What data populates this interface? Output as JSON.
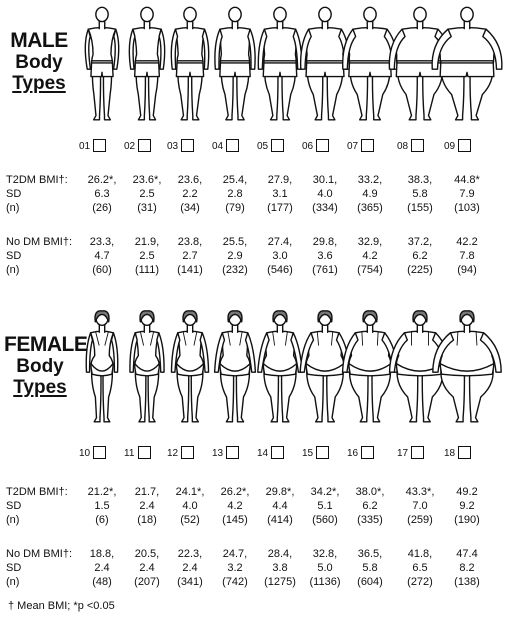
{
  "male": {
    "title": [
      "MALE",
      "Body",
      "Types"
    ],
    "checkboxes": [
      "01",
      "02",
      "03",
      "04",
      "05",
      "06",
      "07",
      "08",
      "09"
    ],
    "t2dm": {
      "labels": [
        "T2DM BMI†:",
        "SD",
        "(n)"
      ],
      "bmi": [
        "26.2*,",
        "23.6*,",
        "23.6,",
        "25.4,",
        "27.9,",
        "30.1,",
        "33.2,",
        "38.3,",
        "44.8*"
      ],
      "sd": [
        "6.3",
        "2.5",
        "2.2",
        "2.8",
        "3.1",
        "4.0",
        "4.9",
        "5.8",
        "7.9"
      ],
      "n": [
        "(26)",
        "(31)",
        "(34)",
        "(79)",
        "(177)",
        "(334)",
        "(365)",
        "(155)",
        "(103)"
      ]
    },
    "nodm": {
      "labels": [
        "No DM BMI†:",
        "SD",
        "(n)"
      ],
      "bmi": [
        "23.3,",
        "21.9,",
        "23.8,",
        "25.5,",
        "27.4,",
        "29.8,",
        "32.9,",
        "37.2,",
        "42.2"
      ],
      "sd": [
        "4.7",
        "2.5",
        "2.7",
        "2.9",
        "3.0",
        "3.6",
        "4.2",
        "6.2",
        "7.8"
      ],
      "n": [
        "(60)",
        "(111)",
        "(141)",
        "(232)",
        "(546)",
        "(761)",
        "(754)",
        "(225)",
        "(94)"
      ]
    }
  },
  "female": {
    "title": [
      "FEMALE",
      "Body",
      "Types"
    ],
    "checkboxes": [
      "10",
      "11",
      "12",
      "13",
      "14",
      "15",
      "16",
      "17",
      "18"
    ],
    "t2dm": {
      "labels": [
        "T2DM BMI†:",
        "SD",
        "(n)"
      ],
      "bmi": [
        "21.2*,",
        "21.7,",
        "24.1*,",
        "26.2*,",
        "29.8*,",
        "34.2*,",
        "38.0*,",
        "43.3*,",
        "49.2"
      ],
      "sd": [
        "1.5",
        "2.4",
        "4.0",
        "4.2",
        "4.4",
        "5.1",
        "6.2",
        "7.0",
        "9.2"
      ],
      "n": [
        "(6)",
        "(18)",
        "(52)",
        "(145)",
        "(414)",
        "(560)",
        "(335)",
        "(259)",
        "(190)"
      ]
    },
    "nodm": {
      "labels": [
        "No DM BMI†:",
        "SD",
        "(n)"
      ],
      "bmi": [
        "18.8,",
        "20.5,",
        "22.3,",
        "24.7,",
        "28.4,",
        "32.8,",
        "36.5,",
        "41.8,",
        "47.4"
      ],
      "sd": [
        "2.4",
        "2.4",
        "2.4",
        "3.2",
        "3.8",
        "5.0",
        "5.8",
        "6.5",
        "8.2"
      ],
      "n": [
        "(48)",
        "(207)",
        "(341)",
        "(742)",
        "(1275)",
        "(1136)",
        "(604)",
        "(272)",
        "(138)"
      ]
    }
  },
  "footnote": "† Mean BMI; *p <0.05",
  "figure_widths": {
    "male": [
      0.0,
      0.08,
      0.16,
      0.26,
      0.36,
      0.5,
      0.64,
      0.8,
      1.0
    ],
    "female": [
      0.0,
      0.08,
      0.16,
      0.26,
      0.36,
      0.5,
      0.64,
      0.8,
      1.0
    ]
  }
}
